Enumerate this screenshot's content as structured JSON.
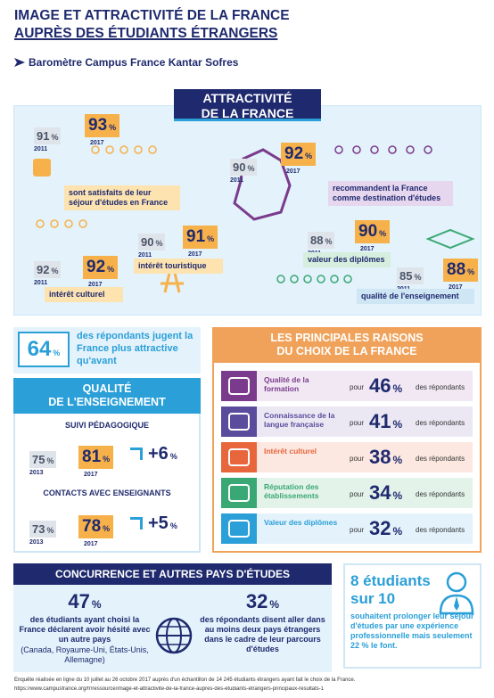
{
  "header": {
    "title_line1": "IMAGE ET ATTRACTIVITÉ DE LA FRANCE",
    "title_line2": "AUPRÈS DES ÉTUDIANTS ÉTRANGERS",
    "subtitle": "Baromètre Campus France Kantar Sofres"
  },
  "attractivite": {
    "title_line1": "ATTRACTIVITÉ",
    "title_line2": "DE LA FRANCE",
    "items": [
      {
        "old": "91",
        "old_unit": "%",
        "old_year": "2011",
        "new": "93",
        "new_unit": "%",
        "new_year": "2017",
        "label": "sont satisfaits de leur séjour d'études en France"
      },
      {
        "old": "90",
        "old_unit": "%",
        "old_year": "2011",
        "new": "92",
        "new_unit": "%",
        "new_year": "2017",
        "label": "recommandent la France comme destination d'études"
      },
      {
        "old": "92",
        "old_unit": "%",
        "old_year": "2011",
        "new": "92",
        "new_unit": "%",
        "new_year": "2017",
        "label": "intérêt culturel"
      },
      {
        "old": "90",
        "old_unit": "%",
        "old_year": "2011",
        "new": "91",
        "new_unit": "%",
        "new_year": "2017",
        "label": "intérêt touristique"
      },
      {
        "old": "88",
        "old_unit": "%",
        "old_year": "2011",
        "new": "90",
        "new_unit": "%",
        "new_year": "2017",
        "label": "valeur des diplômes"
      },
      {
        "old": "85",
        "old_unit": "%",
        "old_year": "2011",
        "new": "88",
        "new_unit": "%",
        "new_year": "2017",
        "label": "qualité de l'enseignement"
      }
    ]
  },
  "plus_attractive": {
    "value": "64",
    "unit": "%",
    "text": "des répondants jugent la France plus attractive qu'avant"
  },
  "qualite": {
    "title_line1": "QUALITÉ",
    "title_line2": "DE L'ENSEIGNEMENT",
    "items": [
      {
        "title": "SUIVI PÉDAGOGIQUE",
        "old": "75",
        "old_unit": "%",
        "old_year": "2013",
        "new": "81",
        "new_unit": "%",
        "new_year": "2017",
        "delta": "+6",
        "delta_unit": "%"
      },
      {
        "title": "CONTACTS AVEC ENSEIGNANTS",
        "old": "73",
        "old_unit": "%",
        "old_year": "2013",
        "new": "78",
        "new_unit": "%",
        "new_year": "2017",
        "delta": "+5",
        "delta_unit": "%"
      }
    ]
  },
  "raisons": {
    "title_line1": "LES PRINCIPALES RAISONS",
    "title_line2": "DU CHOIX DE LA FRANCE",
    "rows": [
      {
        "label": "Qualité de la formation",
        "pour": "pour",
        "value": "46",
        "unit": "%",
        "suffix": "des répondants"
      },
      {
        "label": "Connaissance de la langue française",
        "pour": "pour",
        "value": "41",
        "unit": "%",
        "suffix": "des répondants"
      },
      {
        "label": "Intérêt culturel",
        "pour": "pour",
        "value": "38",
        "unit": "%",
        "suffix": "des répondants"
      },
      {
        "label": "Réputation des établissements",
        "pour": "pour",
        "value": "34",
        "unit": "%",
        "suffix": "des répondants"
      },
      {
        "label": "Valeur des diplômes",
        "pour": "pour",
        "value": "32",
        "unit": "%",
        "suffix": "des répondants"
      }
    ]
  },
  "concurrence": {
    "title": "CONCURRENCE  ET AUTRES PAYS D'ÉTUDES",
    "left": {
      "value": "47",
      "unit": "%",
      "text": "des étudiants ayant choisi la France déclarent avoir hésité avec un autre pays",
      "note": "(Canada, Royaume-Uni, États-Unis, Allemagne)"
    },
    "right": {
      "value": "32",
      "unit": "%",
      "text": "des répondants disent aller dans au moins deux pays étrangers dans le cadre de leur parcours d'études"
    }
  },
  "prolonger": {
    "line1": "8 étudiants",
    "line2": "sur 10",
    "text": "souhaitent prolonger leur séjour d'études par une expérience professionnelle mais seulement 22 % le font."
  },
  "footer": {
    "note": "Enquête réalisée en ligne du 10 juillet au 26 octobre 2017 auprès d'un échantillon de 14 245 étudiants étrangers ayant fait le choix de la France.",
    "url": "https://www.campusfrance.org/fr/ressource/image-et-attractivite-de-la-france-aupres-des-etudiants-etrangers-principaux-resultats-1"
  }
}
